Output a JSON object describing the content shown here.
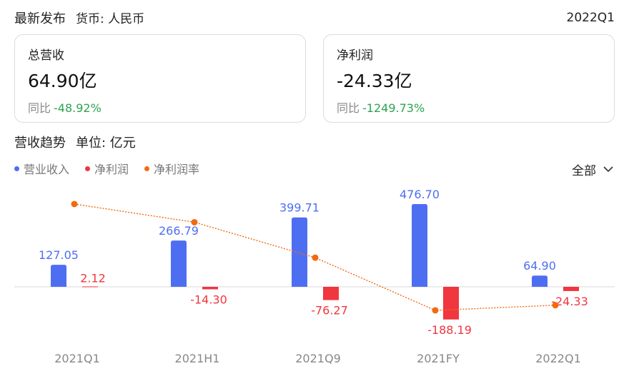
{
  "header": {
    "title": "最新发布",
    "currency": "货币: 人民币",
    "period": "2022Q1"
  },
  "cards": [
    {
      "label": "总营收",
      "value": "64.90亿",
      "yoy_label": "同比",
      "yoy_value": "-48.92%"
    },
    {
      "label": "净利润",
      "value": "-24.33亿",
      "yoy_label": "同比",
      "yoy_value": "-1249.73%"
    }
  ],
  "section": {
    "title": "营收趋势",
    "unit": "单位: 亿元"
  },
  "legend": [
    {
      "name": "营业收入",
      "color": "#4e6ef2"
    },
    {
      "name": "净利润",
      "color": "#f0363e"
    },
    {
      "name": "净利润率",
      "color": "#f26a10"
    }
  ],
  "filter": {
    "label": "全部",
    "icon": "chevron-down-icon"
  },
  "chart_data": {
    "type": "bar",
    "categories": [
      "2021Q1",
      "2021H1",
      "2021Q9",
      "2021FY",
      "2022Q1"
    ],
    "series": [
      {
        "name": "营业收入",
        "values": [
          127.05,
          266.79,
          399.71,
          476.7,
          64.9
        ],
        "color": "#4e6ef2",
        "labels": [
          "127.05",
          "266.79",
          "399.71",
          "476.70",
          "64.90"
        ]
      },
      {
        "name": "净利润",
        "values": [
          2.12,
          -14.3,
          -76.27,
          -188.19,
          -24.33
        ],
        "color": "#f0363e",
        "labels": [
          "2.12",
          "-14.30",
          "-76.27",
          "-188.19",
          "-24.33"
        ]
      },
      {
        "name": "净利润率",
        "type": "line",
        "values": [
          1.67,
          -5.36,
          -19.08,
          -39.48,
          -37.49
        ],
        "color": "#f26a10"
      }
    ]
  }
}
